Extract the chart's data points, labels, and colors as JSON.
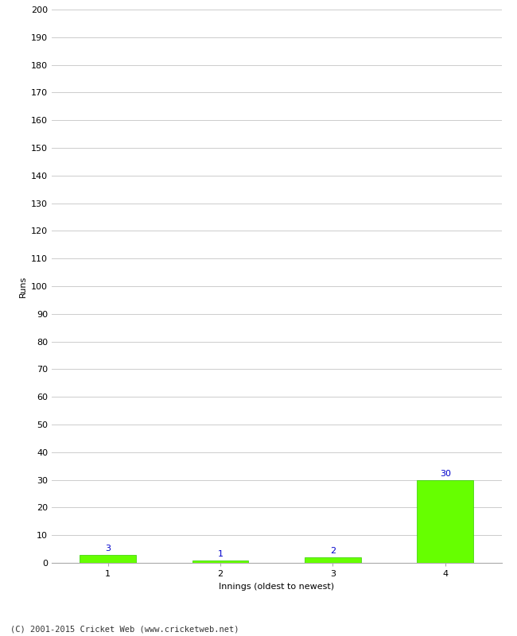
{
  "categories": [
    "1",
    "2",
    "3",
    "4"
  ],
  "values": [
    3,
    1,
    2,
    30
  ],
  "bar_color": "#66ff00",
  "bar_edge_color": "#33cc00",
  "label_color": "#0000cc",
  "xlabel": "Innings (oldest to newest)",
  "ylabel": "Runs",
  "ylim": [
    0,
    200
  ],
  "yticks": [
    0,
    10,
    20,
    30,
    40,
    50,
    60,
    70,
    80,
    90,
    100,
    110,
    120,
    130,
    140,
    150,
    160,
    170,
    180,
    190,
    200
  ],
  "background_color": "#ffffff",
  "grid_color": "#cccccc",
  "footer_text": "(C) 2001-2015 Cricket Web (www.cricketweb.net)",
  "label_fontsize": 8,
  "axis_fontsize": 8,
  "tick_fontsize": 8,
  "footer_fontsize": 7.5
}
